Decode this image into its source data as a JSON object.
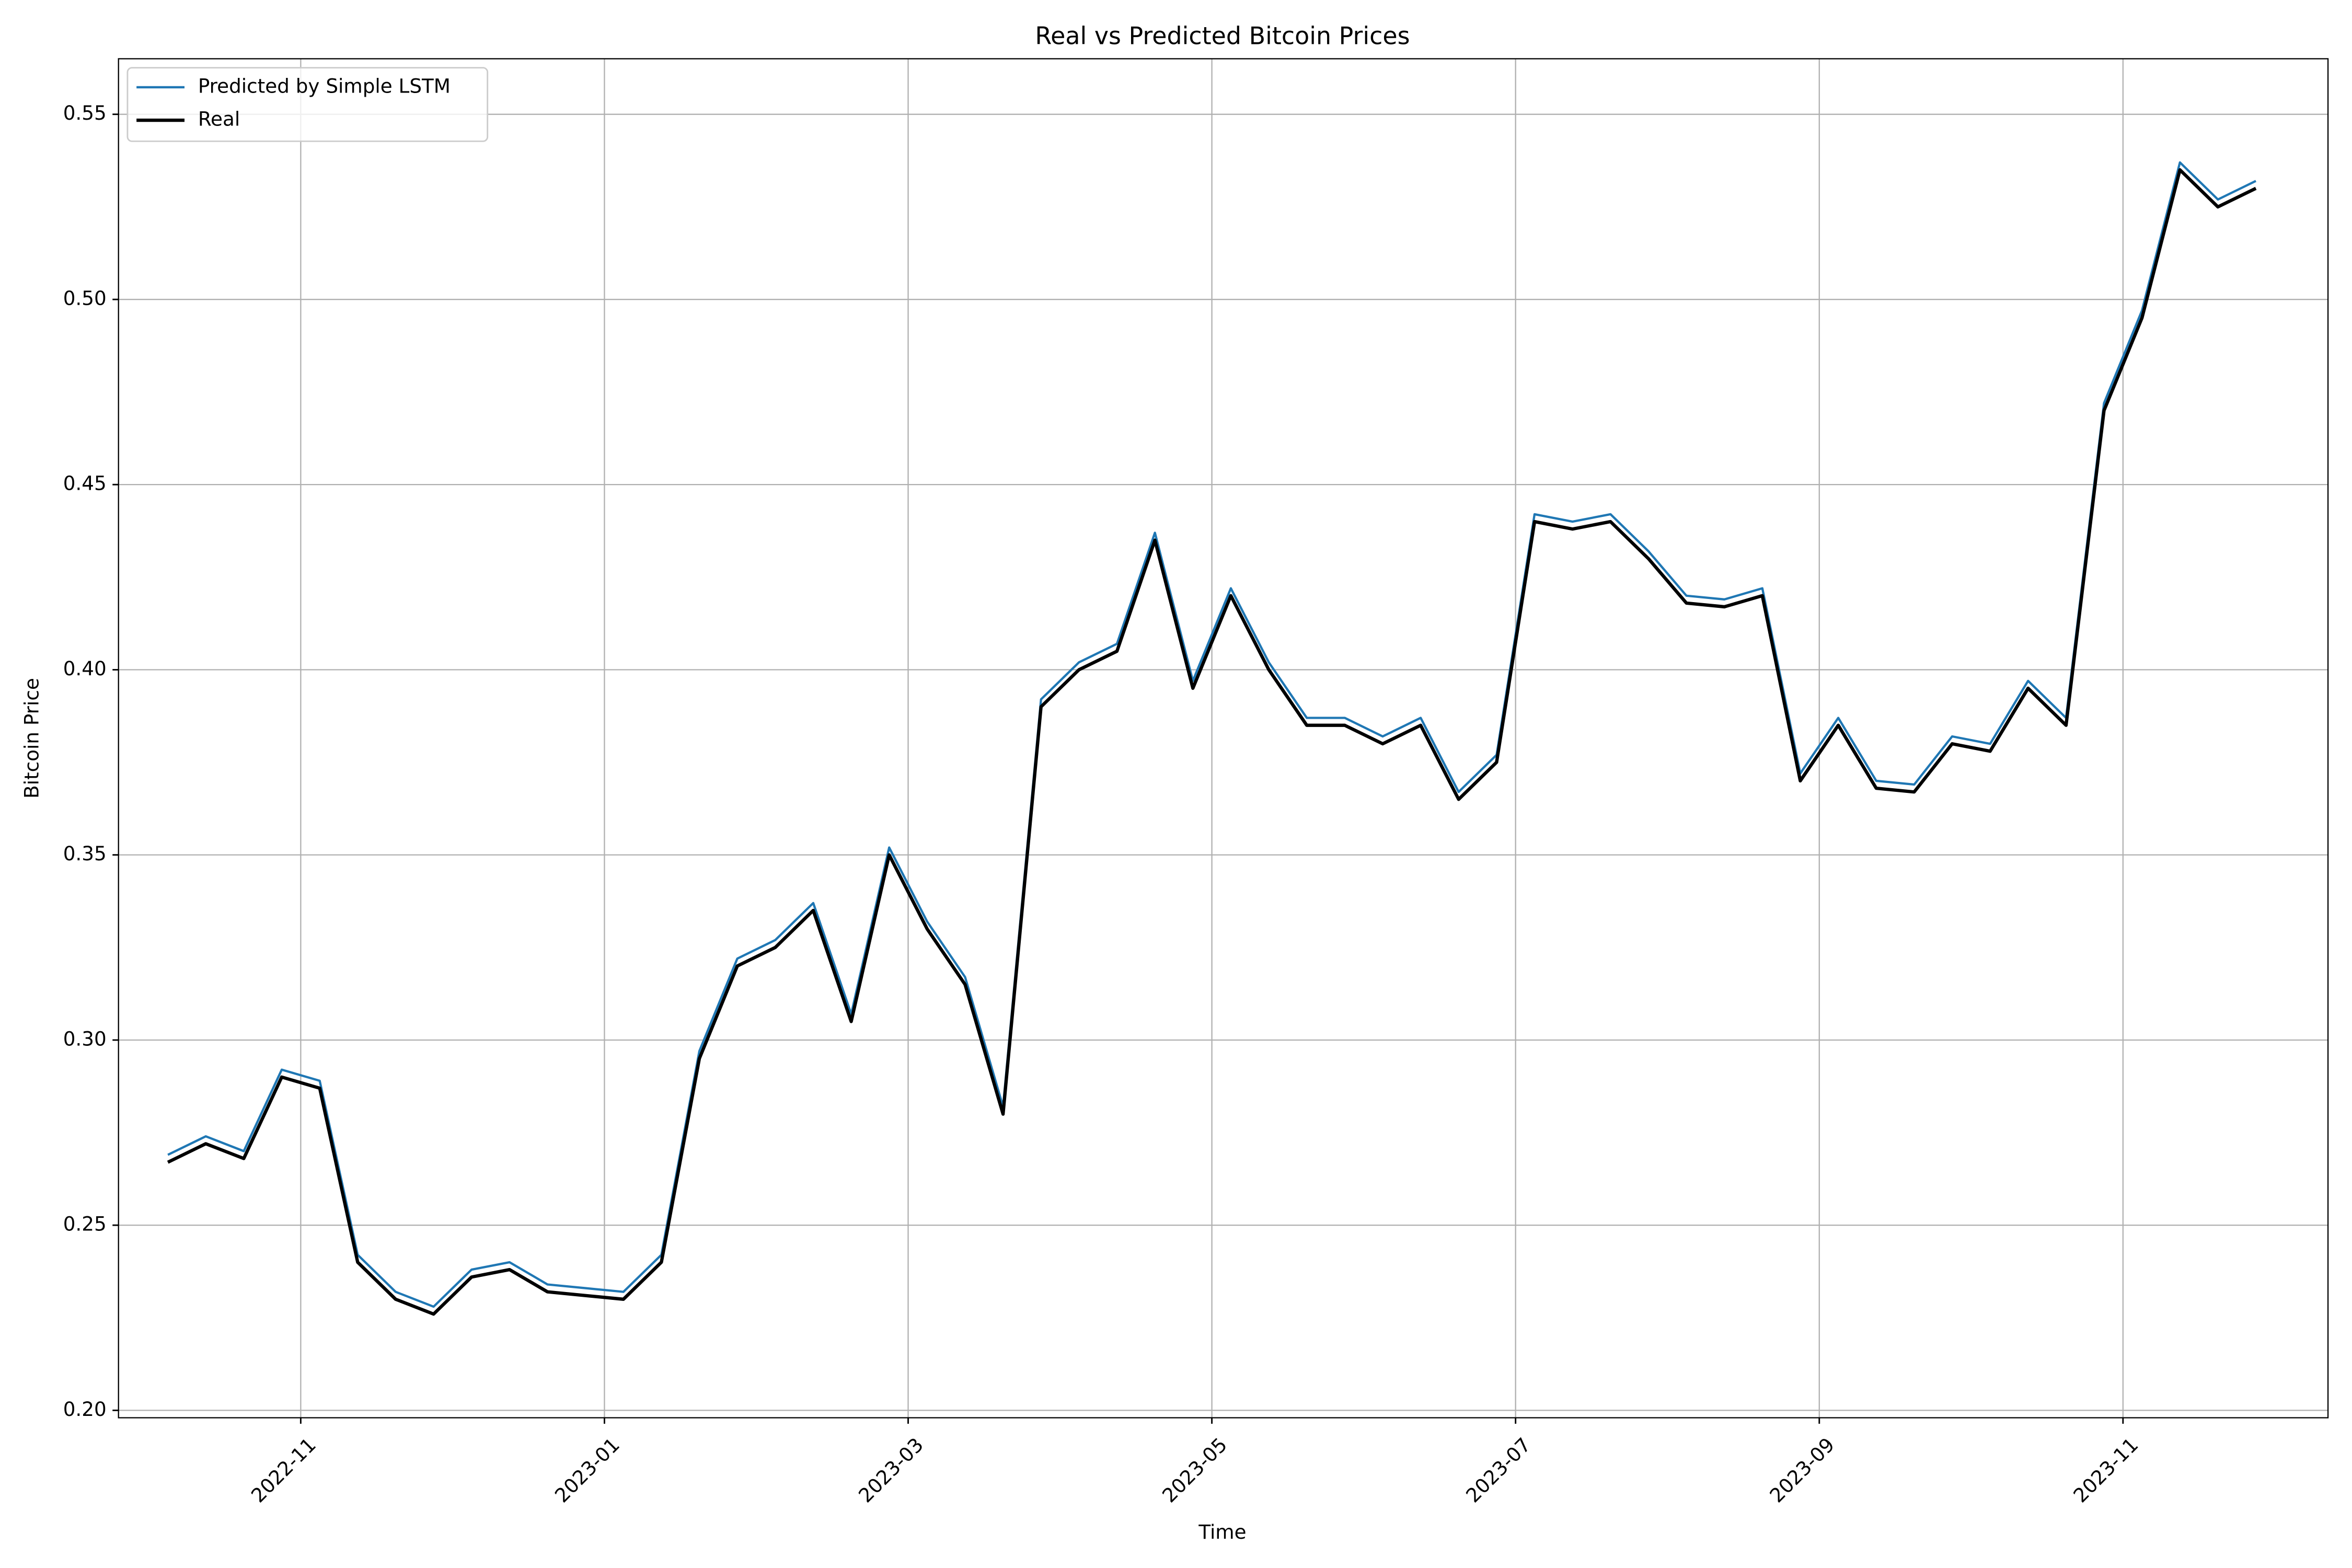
{
  "chart_data": {
    "type": "line",
    "title": "Real vs Predicted Bitcoin Prices",
    "x_label": "Time",
    "y_label": "Bitcoin Price",
    "x": [
      "2022-10",
      "2022-10",
      "2022-10",
      "2022-10",
      "2022-11",
      "2022-11",
      "2022-11",
      "2022-11",
      "2022-12",
      "2022-12",
      "2022-12",
      "2022-12",
      "2023-01",
      "2023-01",
      "2023-01",
      "2023-01",
      "2023-02",
      "2023-02",
      "2023-02",
      "2023-02",
      "2023-03",
      "2023-03",
      "2023-03",
      "2023-03",
      "2023-04",
      "2023-04",
      "2023-04",
      "2023-04",
      "2023-05",
      "2023-05",
      "2023-05",
      "2023-05",
      "2023-06",
      "2023-06",
      "2023-06",
      "2023-06",
      "2023-07",
      "2023-07",
      "2023-07",
      "2023-07",
      "2023-08",
      "2023-08",
      "2023-08",
      "2023-08",
      "2023-09",
      "2023-09",
      "2023-09",
      "2023-09",
      "2023-10",
      "2023-10",
      "2023-10",
      "2023-10",
      "2023-11",
      "2023-11",
      "2023-11",
      "2023-11"
    ],
    "series": [
      {
        "name": "Predicted by Simple LSTM",
        "color": "#1f77b4",
        "width": 1.5,
        "values": [
          0.269,
          0.274,
          0.27,
          0.292,
          0.289,
          0.242,
          0.232,
          0.228,
          0.238,
          0.24,
          0.234,
          0.233,
          0.232,
          0.242,
          0.297,
          0.322,
          0.327,
          0.337,
          0.307,
          0.352,
          0.332,
          0.317,
          0.282,
          0.392,
          0.402,
          0.407,
          0.437,
          0.397,
          0.422,
          0.402,
          0.387,
          0.387,
          0.382,
          0.387,
          0.367,
          0.377,
          0.442,
          0.44,
          0.442,
          0.432,
          0.42,
          0.419,
          0.422,
          0.372,
          0.387,
          0.37,
          0.369,
          0.382,
          0.38,
          0.397,
          0.387,
          0.472,
          0.497,
          0.537,
          0.527,
          0.532
        ]
      },
      {
        "name": "Real",
        "color": "#000000",
        "width": 2.2,
        "values": [
          0.267,
          0.272,
          0.268,
          0.29,
          0.287,
          0.24,
          0.23,
          0.226,
          0.236,
          0.238,
          0.232,
          0.231,
          0.23,
          0.24,
          0.295,
          0.32,
          0.325,
          0.335,
          0.305,
          0.35,
          0.33,
          0.315,
          0.28,
          0.39,
          0.4,
          0.405,
          0.435,
          0.395,
          0.42,
          0.4,
          0.385,
          0.385,
          0.38,
          0.385,
          0.365,
          0.375,
          0.44,
          0.438,
          0.44,
          0.43,
          0.418,
          0.417,
          0.42,
          0.37,
          0.385,
          0.368,
          0.367,
          0.38,
          0.378,
          0.395,
          0.385,
          0.47,
          0.495,
          0.535,
          0.525,
          0.53
        ]
      }
    ],
    "xticks": [
      "2022-11",
      "2023-01",
      "2023-03",
      "2023-05",
      "2023-07",
      "2023-09",
      "2023-11"
    ],
    "ylim": [
      0.198,
      0.565
    ],
    "yticks": [
      {
        "value": 0.2,
        "label": "0.20"
      },
      {
        "value": 0.25,
        "label": "0.25"
      },
      {
        "value": 0.3,
        "label": "0.30"
      },
      {
        "value": 0.35,
        "label": "0.35"
      },
      {
        "value": 0.4,
        "label": "0.40"
      },
      {
        "value": 0.45,
        "label": "0.45"
      },
      {
        "value": 0.5,
        "label": "0.50"
      },
      {
        "value": 0.55,
        "label": "0.55"
      }
    ],
    "grid": true,
    "legend": "upper-left"
  }
}
